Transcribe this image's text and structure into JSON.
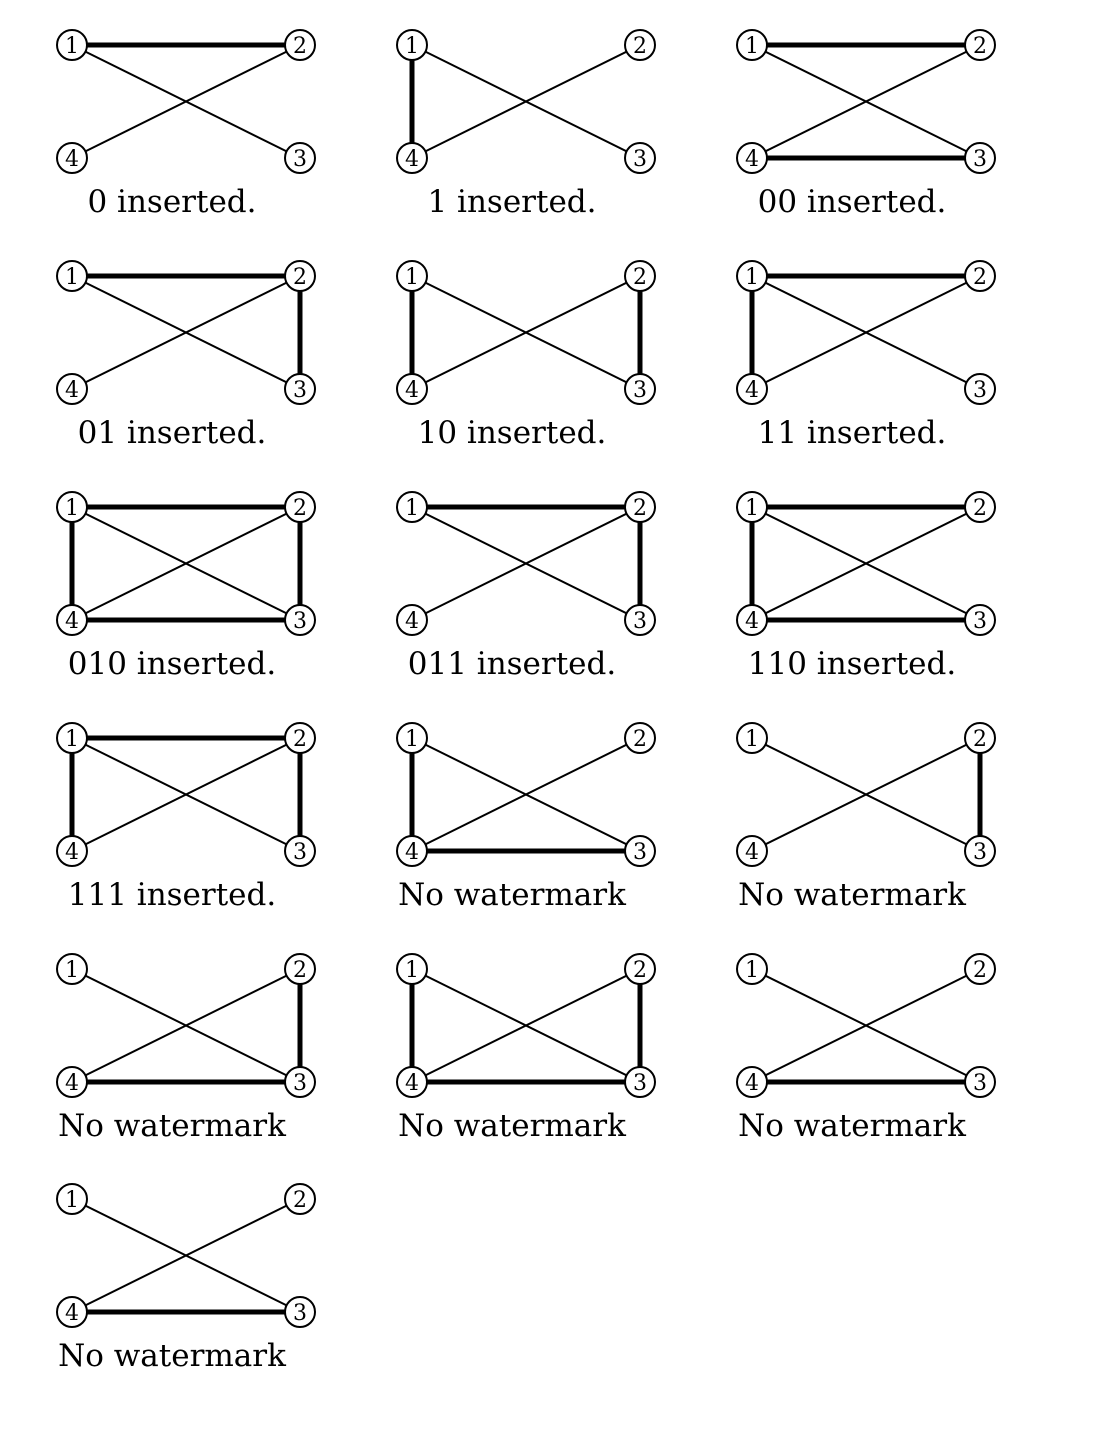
{
  "node_labels": [
    "1",
    "2",
    "3",
    "4"
  ],
  "panels": [
    {
      "caption": "0 inserted.",
      "bold_edges": [
        [
          1,
          2
        ]
      ]
    },
    {
      "caption": "1 inserted.",
      "bold_edges": [
        [
          1,
          4
        ]
      ]
    },
    {
      "caption": "00 inserted.",
      "bold_edges": [
        [
          1,
          2
        ],
        [
          4,
          3
        ]
      ]
    },
    {
      "caption": "01 inserted.",
      "bold_edges": [
        [
          1,
          2
        ],
        [
          2,
          3
        ]
      ]
    },
    {
      "caption": "10 inserted.",
      "bold_edges": [
        [
          1,
          4
        ],
        [
          2,
          3
        ]
      ]
    },
    {
      "caption": "11 inserted.",
      "bold_edges": [
        [
          1,
          2
        ],
        [
          1,
          4
        ]
      ]
    },
    {
      "caption": "010 inserted.",
      "bold_edges": [
        [
          1,
          2
        ],
        [
          1,
          4
        ],
        [
          2,
          3
        ],
        [
          4,
          3
        ]
      ]
    },
    {
      "caption": "011 inserted.",
      "bold_edges": [
        [
          1,
          2
        ],
        [
          2,
          3
        ]
      ]
    },
    {
      "caption": "110 inserted.",
      "bold_edges": [
        [
          1,
          2
        ],
        [
          1,
          4
        ],
        [
          4,
          3
        ]
      ]
    },
    {
      "caption": "111 inserted.",
      "bold_edges": [
        [
          1,
          2
        ],
        [
          1,
          4
        ],
        [
          2,
          3
        ]
      ]
    },
    {
      "caption": "No watermark",
      "bold_edges": [
        [
          1,
          4
        ],
        [
          4,
          3
        ]
      ]
    },
    {
      "caption": "No watermark",
      "bold_edges": [
        [
          2,
          3
        ]
      ]
    },
    {
      "caption": "No watermark",
      "bold_edges": [
        [
          2,
          3
        ],
        [
          4,
          3
        ]
      ]
    },
    {
      "caption": "No watermark",
      "bold_edges": [
        [
          1,
          4
        ],
        [
          2,
          3
        ],
        [
          4,
          3
        ]
      ]
    },
    {
      "caption": "No watermark",
      "bold_edges": [
        [
          4,
          3
        ]
      ]
    },
    {
      "caption": "No watermark",
      "bold_edges": [
        [
          4,
          3
        ]
      ]
    }
  ]
}
